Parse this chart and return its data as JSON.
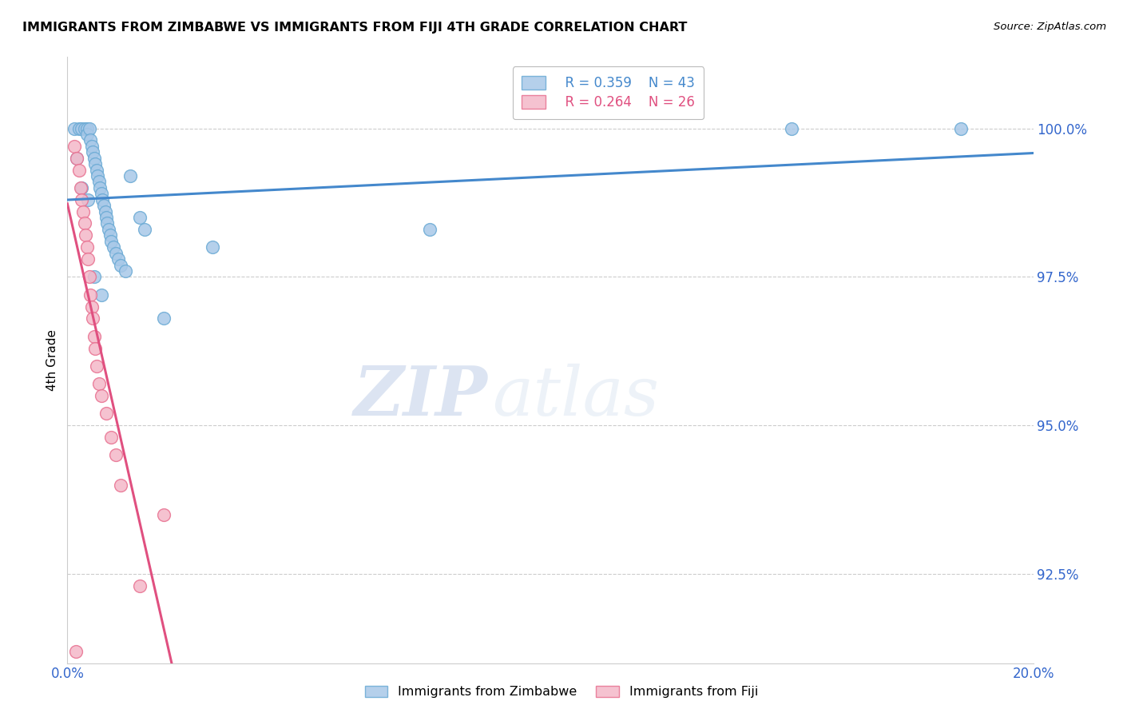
{
  "title": "IMMIGRANTS FROM ZIMBABWE VS IMMIGRANTS FROM FIJI 4TH GRADE CORRELATION CHART",
  "source": "Source: ZipAtlas.com",
  "ylabel": "4th Grade",
  "yticks": [
    92.5,
    95.0,
    97.5,
    100.0
  ],
  "ytick_labels": [
    "92.5%",
    "95.0%",
    "97.5%",
    "100.0%"
  ],
  "xlim": [
    0.0,
    20.0
  ],
  "ylim": [
    91.0,
    101.2
  ],
  "legend_r1": "R = 0.359",
  "legend_n1": "N = 43",
  "legend_r2": "R = 0.264",
  "legend_n2": "N = 26",
  "watermark_zip": "ZIP",
  "watermark_atlas": "atlas",
  "zimbabwe_color": "#a8c8e8",
  "zimbabwe_edge_color": "#6aaad4",
  "fiji_color": "#f4b8c8",
  "fiji_edge_color": "#e87090",
  "zimbabwe_line_color": "#4488cc",
  "fiji_line_color": "#e05080",
  "zimbabwe_x": [
    0.15,
    0.25,
    0.3,
    0.35,
    0.4,
    0.4,
    0.45,
    0.48,
    0.5,
    0.52,
    0.55,
    0.58,
    0.6,
    0.62,
    0.65,
    0.68,
    0.7,
    0.72,
    0.75,
    0.78,
    0.8,
    0.82,
    0.85,
    0.88,
    0.9,
    0.95,
    1.0,
    1.05,
    1.1,
    1.2,
    1.3,
    1.5,
    1.6,
    2.0,
    3.0,
    0.2,
    0.3,
    0.42,
    0.55,
    0.7,
    15.0,
    18.5,
    7.5
  ],
  "zimbabwe_y": [
    100.0,
    100.0,
    100.0,
    100.0,
    100.0,
    99.9,
    100.0,
    99.8,
    99.7,
    99.6,
    99.5,
    99.4,
    99.3,
    99.2,
    99.1,
    99.0,
    98.9,
    98.8,
    98.7,
    98.6,
    98.5,
    98.4,
    98.3,
    98.2,
    98.1,
    98.0,
    97.9,
    97.8,
    97.7,
    97.6,
    99.2,
    98.5,
    98.3,
    96.8,
    98.0,
    99.5,
    99.0,
    98.8,
    97.5,
    97.2,
    100.0,
    100.0,
    98.3
  ],
  "fiji_x": [
    0.15,
    0.2,
    0.25,
    0.28,
    0.3,
    0.32,
    0.35,
    0.38,
    0.4,
    0.42,
    0.45,
    0.48,
    0.5,
    0.52,
    0.55,
    0.58,
    0.6,
    0.65,
    0.7,
    0.8,
    0.9,
    1.0,
    1.1,
    1.5,
    2.0,
    0.18
  ],
  "fiji_y": [
    99.7,
    99.5,
    99.3,
    99.0,
    98.8,
    98.6,
    98.4,
    98.2,
    98.0,
    97.8,
    97.5,
    97.2,
    97.0,
    96.8,
    96.5,
    96.3,
    96.0,
    95.7,
    95.5,
    95.2,
    94.8,
    94.5,
    94.0,
    92.3,
    93.5,
    91.2
  ]
}
